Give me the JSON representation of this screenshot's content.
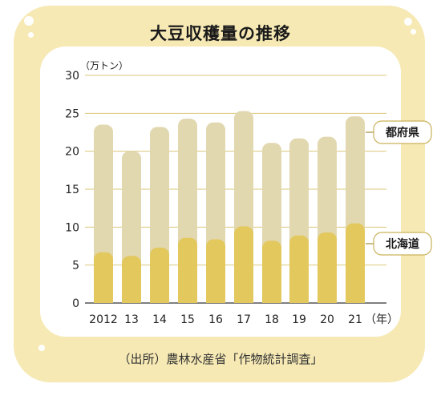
{
  "title": "大豆収穫量の推移",
  "source": "（出所）農林水産省「作物統計調査」",
  "colors": {
    "card_bg": "#f6e9b4",
    "hokkaido": "#e3c85e",
    "prefectures": "#e2d8b0",
    "grid": "#d9c77a",
    "legend_stroke": "#c9b25a"
  },
  "chart_data": {
    "type": "bar",
    "stacked": true,
    "title": "大豆収穫量の推移",
    "ylabel": "（万トン）",
    "xlabel": "（年）",
    "ylim": [
      0,
      30
    ],
    "yticks": [
      "0",
      "5",
      "10",
      "15",
      "20",
      "25",
      "30"
    ],
    "categories": [
      "2012",
      "13",
      "14",
      "15",
      "16",
      "17",
      "18",
      "19",
      "20",
      "21"
    ],
    "series": [
      {
        "name": "北海道",
        "values": [
          6.7,
          6.2,
          7.3,
          8.6,
          8.4,
          10.1,
          8.2,
          8.9,
          9.3,
          10.5
        ]
      },
      {
        "name": "都府県",
        "values": [
          16.8,
          13.8,
          15.9,
          15.7,
          15.4,
          15.2,
          12.9,
          12.8,
          12.6,
          14.1
        ]
      }
    ],
    "grid": true,
    "legend": "right"
  }
}
